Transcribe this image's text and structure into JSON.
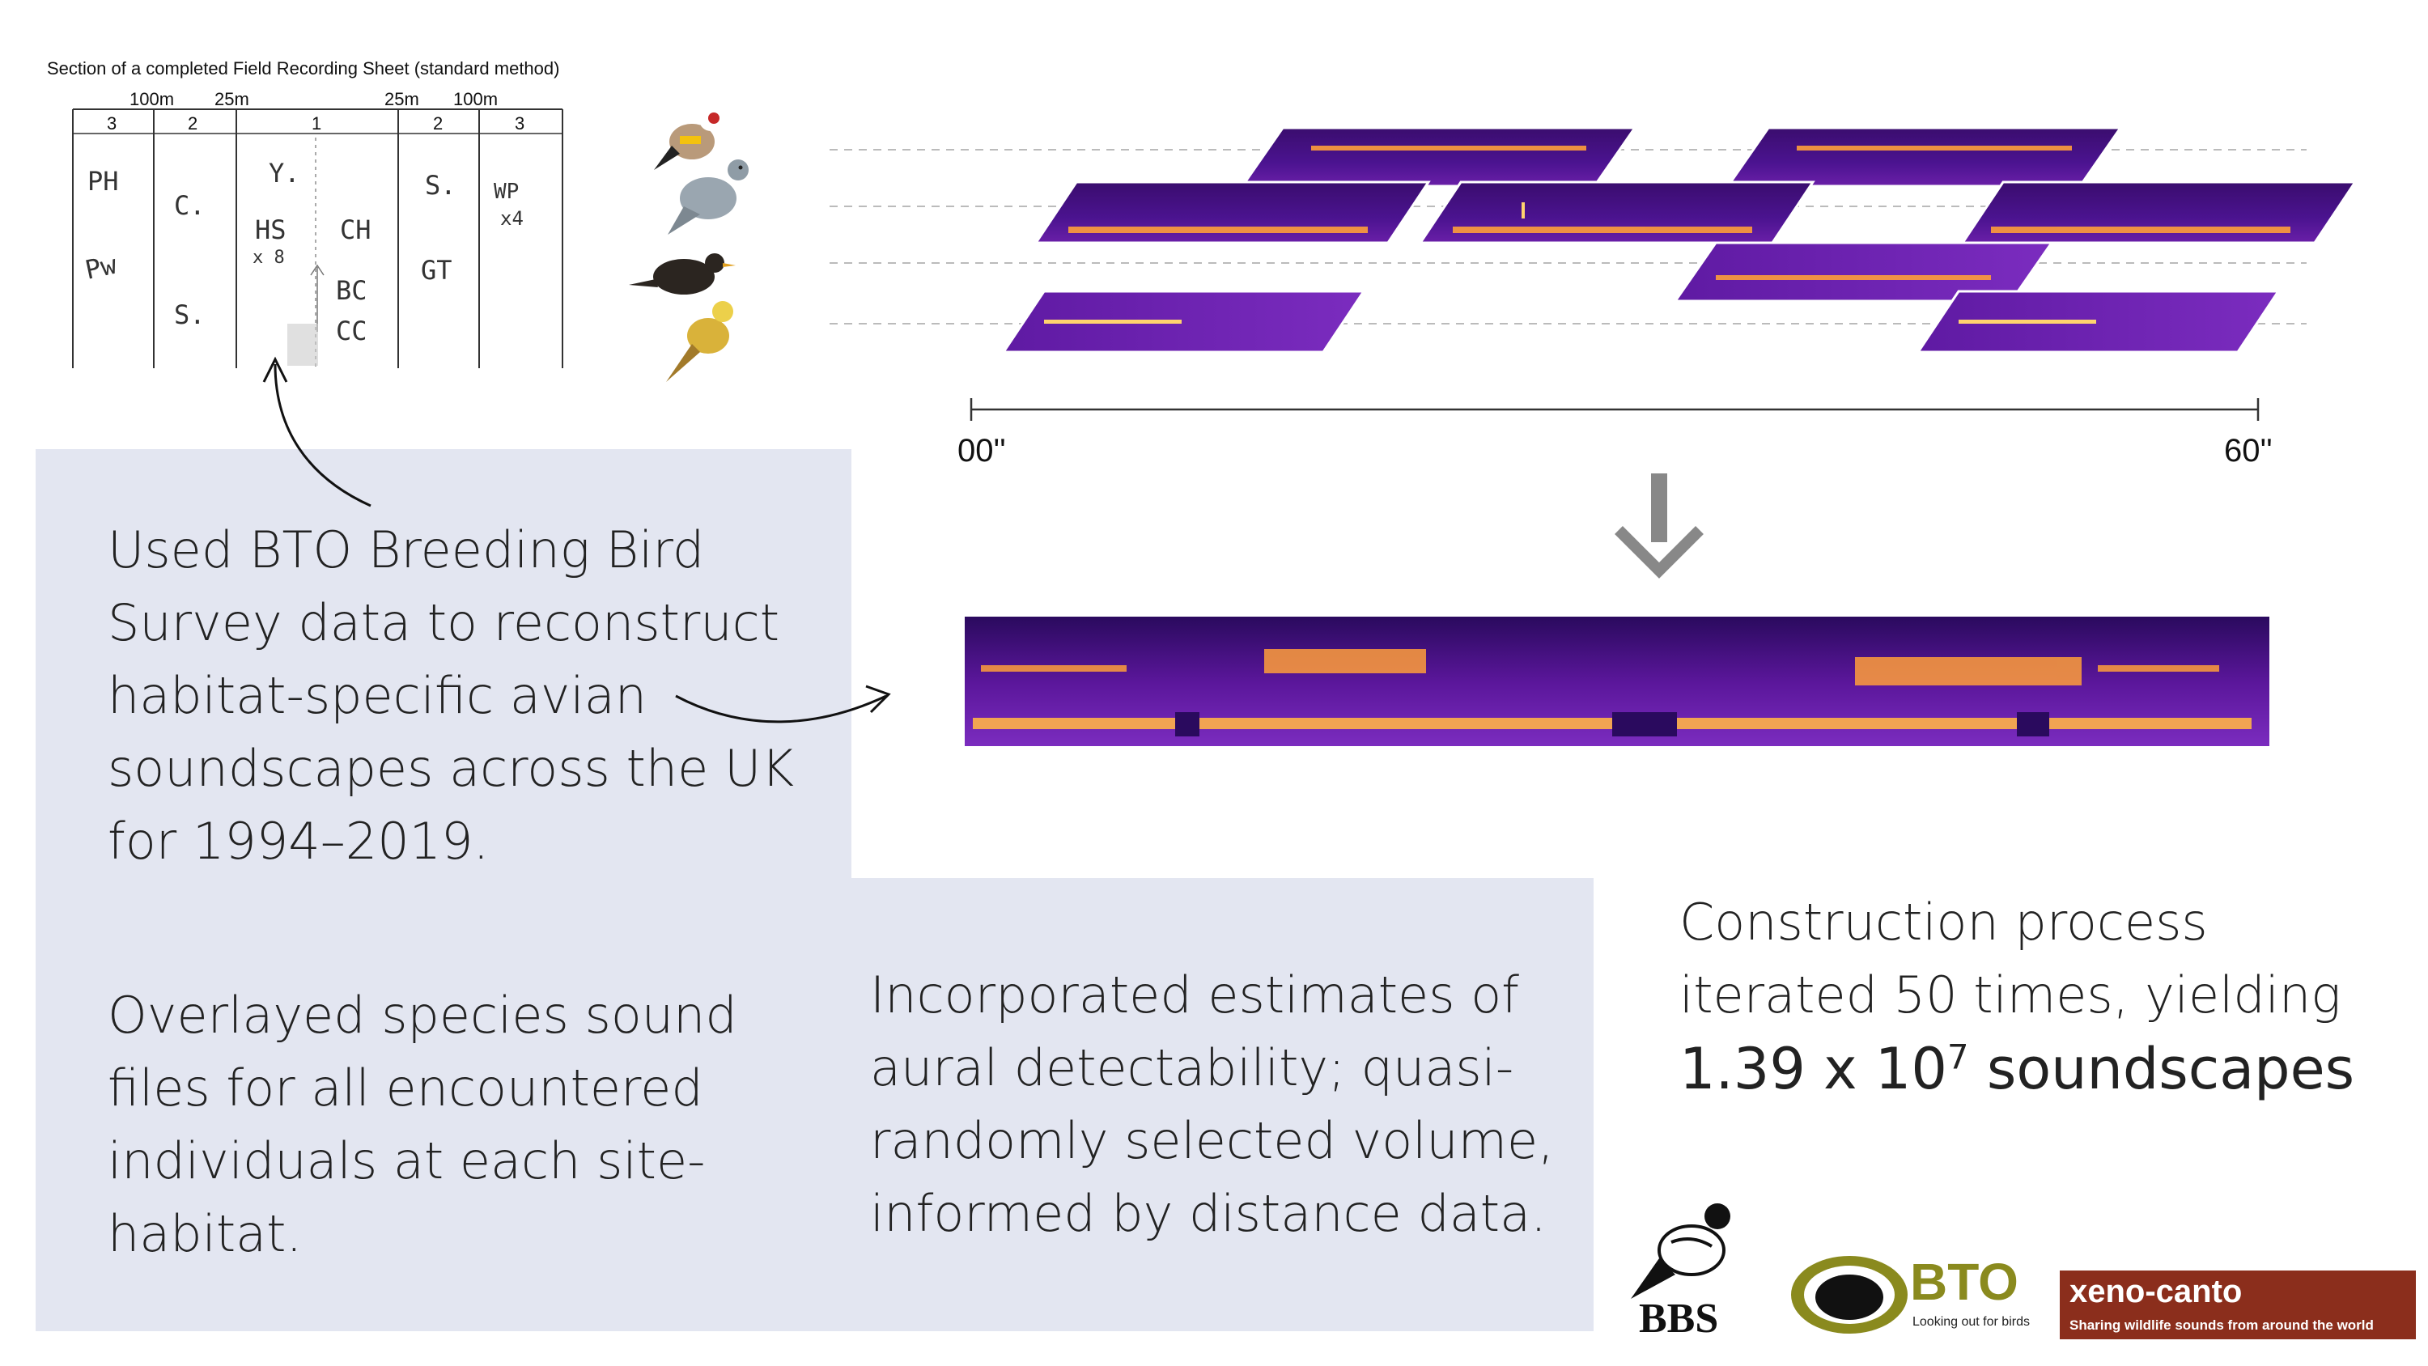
{
  "sheet": {
    "caption": "Section of a completed Field Recording Sheet (standard method)",
    "distance_labels": [
      "100m",
      "25m",
      "25m",
      "100m"
    ],
    "band_labels": [
      "3",
      "2",
      "1",
      "2",
      "3"
    ],
    "entries": [
      "PH",
      "Pw",
      "C.",
      "S.",
      "Y.",
      "HS",
      "x 8",
      "CH",
      "BC",
      "CC",
      "S.",
      "GT",
      "WP",
      "x4"
    ]
  },
  "panels": {
    "methods_1": "Used BTO Breeding Bird Survey data to reconstruct habitat-specific avian soundscapes across the UK for 1994–2019.",
    "methods_2": "Overlayed species sound files for all encountered individuals at each site-habitat.",
    "methods_3": "Incorporated estimates of aural detectability; quasi-randomly selected volume, informed by distance data."
  },
  "timeline": {
    "start": "00''",
    "end": "60''"
  },
  "result": {
    "line1": "Construction process",
    "line2": "iterated 50 times, yielding",
    "count_base": "1.39 x 10",
    "count_exp": "7",
    "count_unit": " soundscapes"
  },
  "logos": {
    "bbs": "BBS",
    "bto": "BTO",
    "bto_tagline": "Looking out for birds",
    "xc_title": "xeno-canto",
    "xc_tagline": "Sharing wildlife sounds from around the world"
  },
  "colors": {
    "panel": "#e3e6f1",
    "spectro_dark": "#2a0a5e",
    "spectro_mid": "#7b2cbf",
    "spectro_hot": "#ff9e3a",
    "xc_red": "#8b2e1c",
    "bto_olive": "#8a8a1e"
  }
}
